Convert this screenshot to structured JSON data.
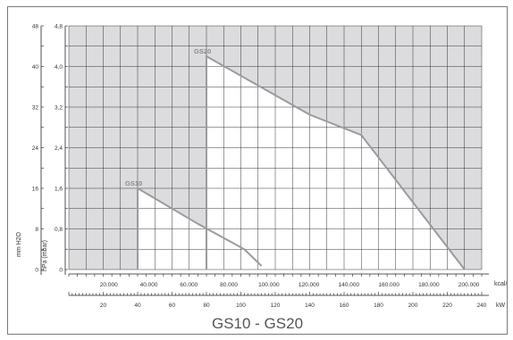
{
  "chart_data": {
    "type": "area",
    "title": "GS10 - GS20",
    "y_left_outer": {
      "label": "mm H2O",
      "ticks": [
        0,
        8,
        16,
        24,
        32,
        40,
        48
      ]
    },
    "y_left_inner": {
      "label": "hPa (mbar)",
      "ticks": [
        "0",
        "0,8",
        "1,6",
        "2,4",
        "3,2",
        "4,0",
        "4,8"
      ],
      "range": [
        0,
        4.8
      ]
    },
    "x_top": {
      "label": "kcal/h",
      "ticks": [
        "20.000",
        "40.000",
        "60.000",
        "80.000",
        "100.000",
        "120.000",
        "140.000",
        "160.000",
        "180.000",
        "200.000"
      ],
      "range": [
        0,
        240
      ]
    },
    "x_bottom": {
      "label": "kW",
      "ticks": [
        20,
        40,
        60,
        80,
        100,
        120,
        140,
        160,
        180,
        200,
        220,
        240
      ],
      "range": [
        0,
        240
      ]
    },
    "grid": true,
    "colors": {
      "outside": "#dcdcdf",
      "inside": "#ffffff",
      "grid": "#222222",
      "curve": "#9a9aa0"
    },
    "series": [
      {
        "name": "GS10",
        "x_unit": "kW",
        "points": [
          [
            40,
            0
          ],
          [
            40,
            1.6
          ],
          [
            75,
            0.9
          ],
          [
            102,
            0.4
          ],
          [
            112,
            0.07
          ]
        ]
      },
      {
        "name": "GS20",
        "x_unit": "kW",
        "points": [
          [
            80,
            0
          ],
          [
            80,
            4.2
          ],
          [
            140,
            3.05
          ],
          [
            170,
            2.65
          ],
          [
            230,
            0
          ]
        ]
      }
    ]
  }
}
